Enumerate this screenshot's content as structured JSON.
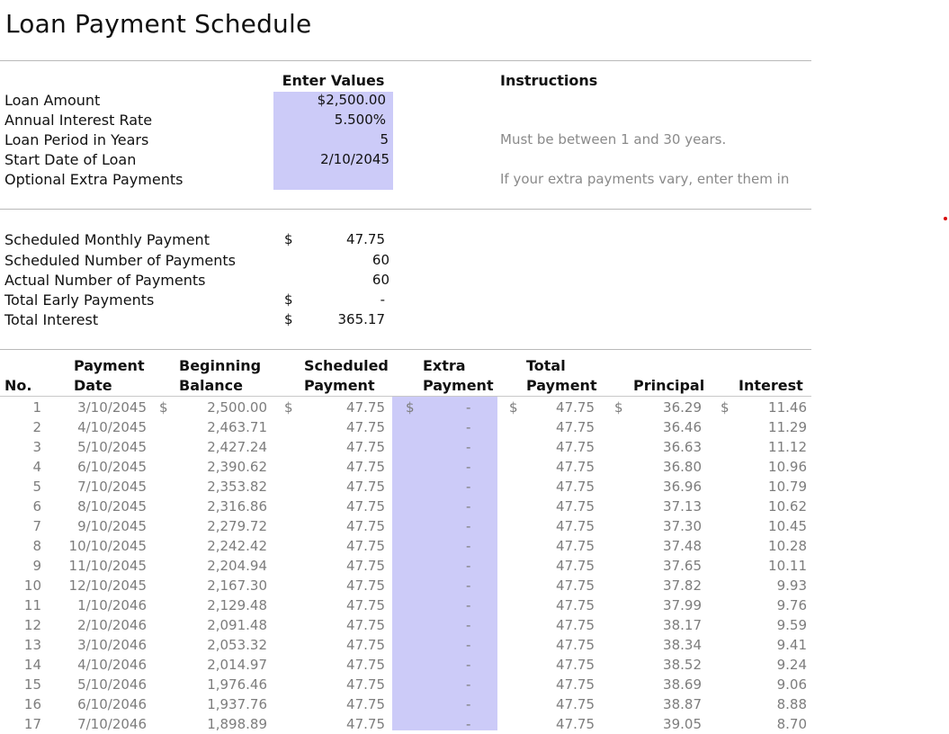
{
  "title": "Loan Payment Schedule",
  "inputs": {
    "header": "Enter Values",
    "instructions_header": "Instructions",
    "rows": [
      {
        "label": "Loan Amount",
        "value": "$2,500.00",
        "note": ""
      },
      {
        "label": "Annual Interest Rate",
        "value": "5.500%",
        "note": ""
      },
      {
        "label": "Loan Period in Years",
        "value": "5",
        "note": "Must be between 1 and 30 years."
      },
      {
        "label": "Start Date of Loan",
        "value": "2/10/2045",
        "note": ""
      },
      {
        "label": "Optional Extra Payments",
        "value": "",
        "note": "If your extra payments vary, enter them in"
      }
    ]
  },
  "summary": [
    {
      "label": "Scheduled Monthly Payment",
      "currency": "$",
      "value": "47.75"
    },
    {
      "label": "Scheduled Number of Payments",
      "currency": "",
      "value": "60"
    },
    {
      "label": "Actual Number of Payments",
      "currency": "",
      "value": "60"
    },
    {
      "label": "Total Early Payments",
      "currency": "$",
      "value": "-"
    },
    {
      "label": "Total Interest",
      "currency": "$",
      "value": "365.17"
    }
  ],
  "schedule": {
    "headers": {
      "no": "No.",
      "date_1": "Payment",
      "date_2": "Date",
      "begin_1": "Beginning",
      "begin_2": "Balance",
      "sched_1": "Scheduled",
      "sched_2": "Payment",
      "extra_1": "Extra",
      "extra_2": "Payment",
      "total_1": "Total",
      "total_2": "Payment",
      "principal": "Principal",
      "interest": "Interest"
    },
    "currency_symbol": "$",
    "rows": [
      {
        "no": "1",
        "date": "3/10/2045",
        "begin": "2,500.00",
        "sched": "47.75",
        "extra": "-",
        "total": "47.75",
        "principal": "36.29",
        "interest": "11.46"
      },
      {
        "no": "2",
        "date": "4/10/2045",
        "begin": "2,463.71",
        "sched": "47.75",
        "extra": "-",
        "total": "47.75",
        "principal": "36.46",
        "interest": "11.29"
      },
      {
        "no": "3",
        "date": "5/10/2045",
        "begin": "2,427.24",
        "sched": "47.75",
        "extra": "-",
        "total": "47.75",
        "principal": "36.63",
        "interest": "11.12"
      },
      {
        "no": "4",
        "date": "6/10/2045",
        "begin": "2,390.62",
        "sched": "47.75",
        "extra": "-",
        "total": "47.75",
        "principal": "36.80",
        "interest": "10.96"
      },
      {
        "no": "5",
        "date": "7/10/2045",
        "begin": "2,353.82",
        "sched": "47.75",
        "extra": "-",
        "total": "47.75",
        "principal": "36.96",
        "interest": "10.79"
      },
      {
        "no": "6",
        "date": "8/10/2045",
        "begin": "2,316.86",
        "sched": "47.75",
        "extra": "-",
        "total": "47.75",
        "principal": "37.13",
        "interest": "10.62"
      },
      {
        "no": "7",
        "date": "9/10/2045",
        "begin": "2,279.72",
        "sched": "47.75",
        "extra": "-",
        "total": "47.75",
        "principal": "37.30",
        "interest": "10.45"
      },
      {
        "no": "8",
        "date": "10/10/2045",
        "begin": "2,242.42",
        "sched": "47.75",
        "extra": "-",
        "total": "47.75",
        "principal": "37.48",
        "interest": "10.28"
      },
      {
        "no": "9",
        "date": "11/10/2045",
        "begin": "2,204.94",
        "sched": "47.75",
        "extra": "-",
        "total": "47.75",
        "principal": "37.65",
        "interest": "10.11"
      },
      {
        "no": "10",
        "date": "12/10/2045",
        "begin": "2,167.30",
        "sched": "47.75",
        "extra": "-",
        "total": "47.75",
        "principal": "37.82",
        "interest": "9.93"
      },
      {
        "no": "11",
        "date": "1/10/2046",
        "begin": "2,129.48",
        "sched": "47.75",
        "extra": "-",
        "total": "47.75",
        "principal": "37.99",
        "interest": "9.76"
      },
      {
        "no": "12",
        "date": "2/10/2046",
        "begin": "2,091.48",
        "sched": "47.75",
        "extra": "-",
        "total": "47.75",
        "principal": "38.17",
        "interest": "9.59"
      },
      {
        "no": "13",
        "date": "3/10/2046",
        "begin": "2,053.32",
        "sched": "47.75",
        "extra": "-",
        "total": "47.75",
        "principal": "38.34",
        "interest": "9.41"
      },
      {
        "no": "14",
        "date": "4/10/2046",
        "begin": "2,014.97",
        "sched": "47.75",
        "extra": "-",
        "total": "47.75",
        "principal": "38.52",
        "interest": "9.24"
      },
      {
        "no": "15",
        "date": "5/10/2046",
        "begin": "1,976.46",
        "sched": "47.75",
        "extra": "-",
        "total": "47.75",
        "principal": "38.69",
        "interest": "9.06"
      },
      {
        "no": "16",
        "date": "6/10/2046",
        "begin": "1,937.76",
        "sched": "47.75",
        "extra": "-",
        "total": "47.75",
        "principal": "38.87",
        "interest": "8.88"
      },
      {
        "no": "17",
        "date": "7/10/2046",
        "begin": "1,898.89",
        "sched": "47.75",
        "extra": "-",
        "total": "47.75",
        "principal": "39.05",
        "interest": "8.70"
      }
    ]
  },
  "colors": {
    "input_fill": "#cccbf8",
    "divider": "#b9b9b9",
    "muted_text": "#7d7d7d",
    "marker": "#d80000"
  }
}
